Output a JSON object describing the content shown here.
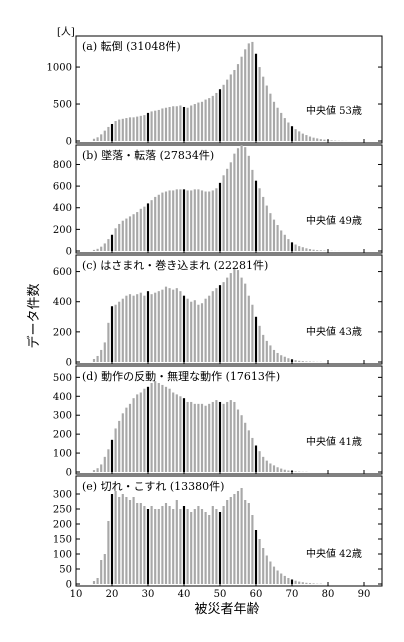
{
  "chart_data": {
    "type": "bar",
    "y_unit": "[人]",
    "ylabel": "データ件数",
    "xlabel": "被災者年齢",
    "x_ticks": [
      10,
      20,
      30,
      40,
      50,
      60,
      70,
      80,
      90
    ],
    "x_range": [
      10,
      95
    ],
    "ages": [
      15,
      16,
      17,
      18,
      19,
      20,
      21,
      22,
      23,
      24,
      25,
      26,
      27,
      28,
      29,
      30,
      31,
      32,
      33,
      34,
      35,
      36,
      37,
      38,
      39,
      40,
      41,
      42,
      43,
      44,
      45,
      46,
      47,
      48,
      49,
      50,
      51,
      52,
      53,
      54,
      55,
      56,
      57,
      58,
      59,
      60,
      61,
      62,
      63,
      64,
      65,
      66,
      67,
      68,
      69,
      70,
      71,
      72,
      73,
      74,
      75,
      76,
      77,
      78,
      79,
      80,
      81,
      82,
      83,
      84,
      85
    ],
    "highlight_ages": [
      20,
      30,
      40,
      50,
      60,
      70
    ],
    "panels": [
      {
        "title": "(a) 転倒  (31048件)",
        "median_label": "中央値  53歳",
        "ylim": [
          0,
          1420
        ],
        "y_ticks": [
          0,
          500,
          1000
        ],
        "values": [
          30,
          50,
          90,
          140,
          190,
          230,
          270,
          290,
          300,
          310,
          320,
          320,
          330,
          340,
          350,
          380,
          400,
          410,
          420,
          440,
          450,
          460,
          470,
          470,
          480,
          460,
          450,
          480,
          500,
          520,
          530,
          560,
          580,
          610,
          650,
          700,
          760,
          830,
          900,
          960,
          1040,
          1140,
          1240,
          1320,
          1340,
          1180,
          1000,
          870,
          750,
          640,
          530,
          450,
          380,
          310,
          250,
          200,
          160,
          130,
          100,
          80,
          60,
          45,
          35,
          25,
          18,
          12,
          8,
          5,
          3,
          2,
          1
        ]
      },
      {
        "title": "(b) 墜落・転落  (27834件)",
        "median_label": "中央値  49歳",
        "ylim": [
          0,
          980
        ],
        "y_ticks": [
          0,
          200,
          400,
          600,
          800
        ],
        "values": [
          10,
          20,
          40,
          70,
          110,
          150,
          210,
          250,
          280,
          300,
          320,
          340,
          360,
          390,
          410,
          440,
          470,
          500,
          520,
          540,
          550,
          560,
          560,
          570,
          570,
          570,
          560,
          560,
          570,
          570,
          560,
          550,
          550,
          560,
          580,
          630,
          700,
          760,
          820,
          900,
          950,
          980,
          960,
          880,
          750,
          650,
          580,
          500,
          420,
          350,
          290,
          240,
          190,
          150,
          110,
          80,
          60,
          45,
          35,
          25,
          18,
          12,
          8,
          6,
          4,
          3,
          2,
          1,
          1,
          0,
          0
        ]
      },
      {
        "title": "(c) はさまれ・巻き込まれ  (22281件)",
        "median_label": "中央値  43歳",
        "ylim": [
          0,
          710
        ],
        "y_ticks": [
          0,
          200,
          400,
          600
        ],
        "values": [
          20,
          40,
          80,
          130,
          260,
          370,
          380,
          400,
          420,
          440,
          450,
          440,
          450,
          460,
          440,
          470,
          450,
          460,
          470,
          480,
          500,
          490,
          480,
          490,
          470,
          440,
          420,
          400,
          410,
          380,
          390,
          420,
          440,
          470,
          490,
          510,
          530,
          560,
          590,
          620,
          610,
          560,
          520,
          440,
          380,
          300,
          240,
          180,
          140,
          110,
          80,
          60,
          45,
          35,
          25,
          18,
          12,
          8,
          6,
          4,
          3,
          2,
          1,
          1,
          0,
          0,
          0,
          0,
          0,
          0,
          0
        ]
      },
      {
        "title": "(d) 動作の反動・無理な動作  (17613件)",
        "median_label": "中央値  41歳",
        "ylim": [
          0,
          560
        ],
        "y_ticks": [
          0,
          100,
          200,
          300,
          400,
          500
        ],
        "values": [
          10,
          20,
          40,
          80,
          120,
          170,
          230,
          270,
          310,
          340,
          360,
          390,
          410,
          420,
          440,
          450,
          470,
          480,
          470,
          460,
          450,
          440,
          420,
          410,
          400,
          390,
          370,
          370,
          360,
          360,
          360,
          350,
          360,
          370,
          380,
          370,
          360,
          370,
          380,
          370,
          330,
          300,
          260,
          220,
          180,
          140,
          110,
          80,
          60,
          45,
          35,
          25,
          18,
          12,
          8,
          5,
          3,
          2,
          1,
          1,
          0,
          0,
          0,
          0,
          0,
          0,
          0,
          0,
          0,
          0,
          0
        ]
      },
      {
        "title": "(e) 切れ・こすれ  (13380件)",
        "median_label": "中央値  42歳",
        "ylim": [
          0,
          360
        ],
        "y_ticks": [
          0,
          50,
          100,
          150,
          200,
          250,
          300
        ],
        "values": [
          10,
          20,
          80,
          100,
          210,
          300,
          310,
          290,
          300,
          290,
          280,
          290,
          270,
          270,
          260,
          250,
          260,
          250,
          250,
          260,
          270,
          260,
          250,
          280,
          250,
          260,
          250,
          240,
          250,
          260,
          250,
          240,
          230,
          260,
          250,
          240,
          260,
          280,
          290,
          300,
          310,
          320,
          280,
          270,
          230,
          180,
          150,
          120,
          95,
          75,
          58,
          45,
          35,
          27,
          20,
          15,
          11,
          8,
          6,
          4,
          3,
          2,
          1,
          1,
          0,
          0,
          0,
          0,
          0,
          0,
          0
        ]
      }
    ]
  }
}
